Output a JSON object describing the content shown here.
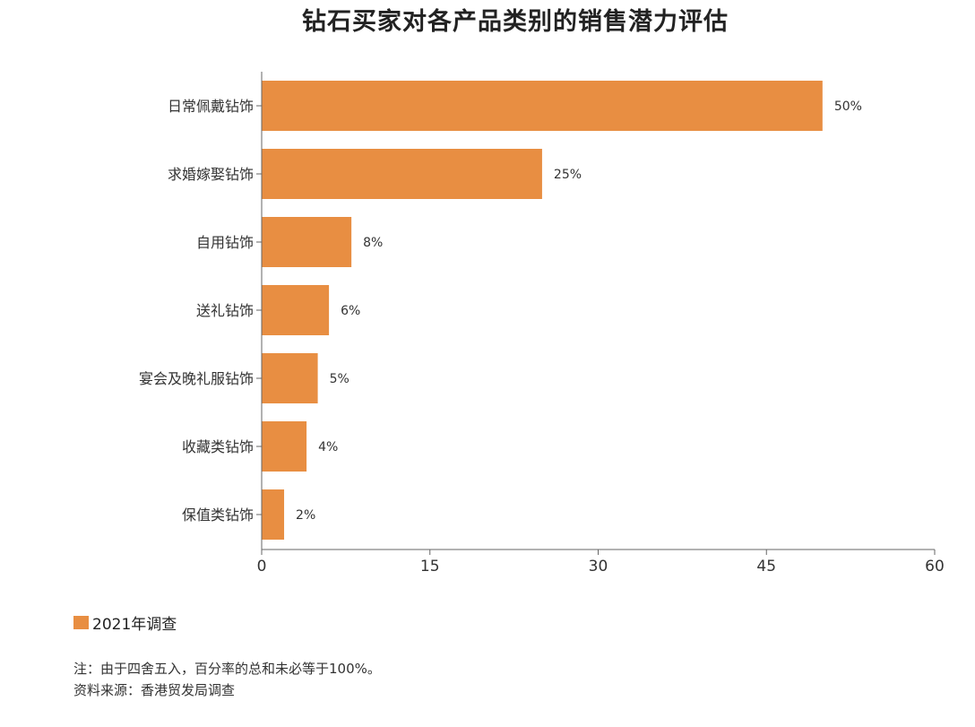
{
  "title": "钻石买家对各产品类别的销售潜力评估",
  "colors": {
    "bar": "#E88E42",
    "axis": "#666666",
    "text": "#333333"
  },
  "legend": {
    "label": "2021年调查",
    "color": "#E88E42"
  },
  "notes": {
    "note": "注：由于四舍五入，百分率的总和未必等于100%。",
    "source": "资料来源：香港贸发局调查"
  },
  "chart_data": {
    "type": "bar",
    "orientation": "horizontal",
    "title": "钻石买家对各产品类别的销售潜力评估",
    "xlabel": "",
    "ylabel": "",
    "categories": [
      "日常佩戴钻饰",
      "求婚嫁娶钻饰",
      "自用钻饰",
      "送礼钻饰",
      "宴会及晚礼服钻饰",
      "收藏类钻饰",
      "保值类钻饰"
    ],
    "series": [
      {
        "name": "2021年调查",
        "values": [
          50,
          25,
          8,
          6,
          5,
          4,
          2
        ]
      }
    ],
    "data_labels": [
      "50%",
      "25%",
      "8%",
      "6%",
      "5%",
      "4%",
      "2%"
    ],
    "xlim": [
      0,
      60
    ],
    "xticks": [
      0,
      15,
      30,
      45,
      60
    ],
    "grid": false,
    "legend_position": "bottom-left"
  }
}
